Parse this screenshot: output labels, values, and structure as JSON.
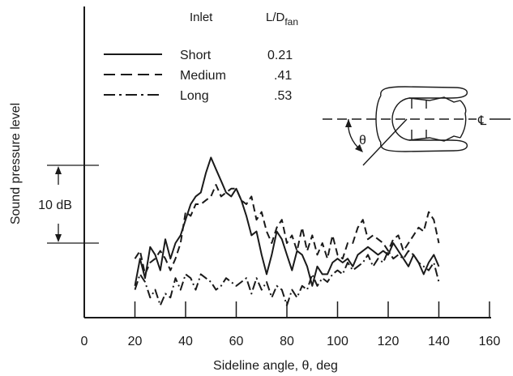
{
  "chart_data": {
    "type": "line",
    "xlabel": "Sideline angle, θ, deg",
    "ylabel": "Sound pressure level",
    "xlim": [
      0,
      160
    ],
    "x_ticks": [
      "0",
      "20",
      "40",
      "60",
      "80",
      "100",
      "120",
      "140",
      "160"
    ],
    "grid": false,
    "legend": {
      "placement": "top-left",
      "header_inlet": "Inlet",
      "header_ratio_main": "L/D",
      "header_ratio_sub": "fan"
    },
    "scale_bar": {
      "label": "10 dB",
      "span_db": 10
    },
    "inset": {
      "centerline_symbol": "℄",
      "angle_symbol": "θ"
    },
    "series": [
      {
        "name": "Short",
        "ratio": "0.21",
        "dash": "solid",
        "x": [
          20,
          22,
          24,
          26,
          28,
          30,
          32,
          34,
          36,
          38,
          40,
          42,
          44,
          46,
          48,
          50,
          52,
          54,
          56,
          58,
          60,
          62,
          64,
          66,
          68,
          70,
          72,
          74,
          76,
          78,
          80,
          82,
          84,
          86,
          88,
          90,
          92,
          94,
          96,
          98,
          100,
          102,
          104,
          106,
          108,
          110,
          112,
          114,
          116,
          118,
          120,
          122,
          124,
          126,
          128,
          130,
          132,
          134,
          136,
          138,
          140
        ],
        "y": [
          -5.5,
          -2,
          -4.5,
          -0.5,
          -1.5,
          -3.5,
          0.5,
          -2,
          0,
          1,
          3,
          5,
          6,
          6.5,
          9,
          11,
          9.5,
          8,
          6.5,
          6,
          7,
          5.5,
          3.5,
          1,
          1.5,
          -1.5,
          -4,
          -1.5,
          1.5,
          0.5,
          -1.5,
          -3.5,
          -1,
          -1.5,
          -3,
          -5.5,
          -3,
          -4,
          -4,
          -2.5,
          -2,
          -2.5,
          -2,
          -3,
          -1.5,
          -1,
          -0.5,
          -1,
          -1.5,
          -1,
          -1.5,
          0,
          -1,
          -2,
          -3,
          -1.5,
          -2.5,
          -4,
          -2.5,
          -1.5,
          -3
        ]
      },
      {
        "name": "Medium",
        "ratio": ".41",
        "dash": "dashed",
        "x": [
          20,
          22,
          24,
          26,
          28,
          30,
          32,
          34,
          36,
          38,
          40,
          42,
          44,
          46,
          48,
          50,
          52,
          54,
          56,
          58,
          60,
          62,
          64,
          66,
          68,
          70,
          72,
          74,
          76,
          78,
          80,
          82,
          84,
          86,
          88,
          90,
          92,
          94,
          96,
          98,
          100,
          102,
          104,
          106,
          108,
          110,
          112,
          114,
          116,
          118,
          120,
          122,
          124,
          126,
          128,
          130,
          132,
          134,
          136,
          138,
          140
        ],
        "y": [
          -2,
          -1,
          -4,
          -2.5,
          -2,
          -1,
          -2,
          -3.5,
          -2,
          0,
          4,
          3.5,
          5,
          5,
          5.5,
          6,
          7.5,
          6,
          6.5,
          7,
          7,
          5.5,
          5,
          6,
          3,
          4,
          1.5,
          0,
          2,
          3,
          0,
          1,
          -1,
          2,
          -1,
          1,
          -1.5,
          0,
          -2,
          1,
          -1.5,
          -2,
          0,
          0,
          2,
          3,
          0.5,
          1,
          0.5,
          0,
          -1,
          0.5,
          1,
          -1,
          0,
          1,
          2,
          1.5,
          4,
          3,
          0
        ]
      },
      {
        "name": "Long",
        "ratio": ".53",
        "dash": "dashdot",
        "x": [
          20,
          22,
          24,
          26,
          28,
          30,
          32,
          34,
          36,
          38,
          40,
          42,
          44,
          46,
          48,
          50,
          52,
          54,
          56,
          58,
          60,
          62,
          64,
          66,
          68,
          70,
          72,
          74,
          76,
          78,
          80,
          82,
          84,
          86,
          88,
          90,
          92,
          94,
          96,
          98,
          100,
          102,
          104,
          106,
          108,
          110,
          112,
          114,
          116,
          118,
          120,
          122,
          124,
          126,
          128,
          130,
          132,
          134,
          136,
          138,
          140
        ],
        "y": [
          -6,
          -4,
          -5,
          -7,
          -6,
          -8,
          -6.5,
          -7,
          -4.5,
          -6,
          -4,
          -4.5,
          -6,
          -4,
          -4.5,
          -5,
          -6,
          -5.5,
          -4.5,
          -5,
          -5.5,
          -5,
          -4.5,
          -6.5,
          -4.5,
          -6,
          -5,
          -7,
          -5.5,
          -6,
          -8,
          -6,
          -7,
          -5.5,
          -6,
          -4,
          -5.5,
          -4.5,
          -5,
          -4,
          -3.5,
          -4,
          -2.5,
          -3.5,
          -3,
          -2.5,
          -1.5,
          -3,
          -2,
          -2.5,
          -1,
          -2,
          -1.5,
          -2,
          -1,
          -1.5,
          -2.5,
          -3,
          -3.5,
          -2.5,
          -5
        ]
      }
    ]
  }
}
